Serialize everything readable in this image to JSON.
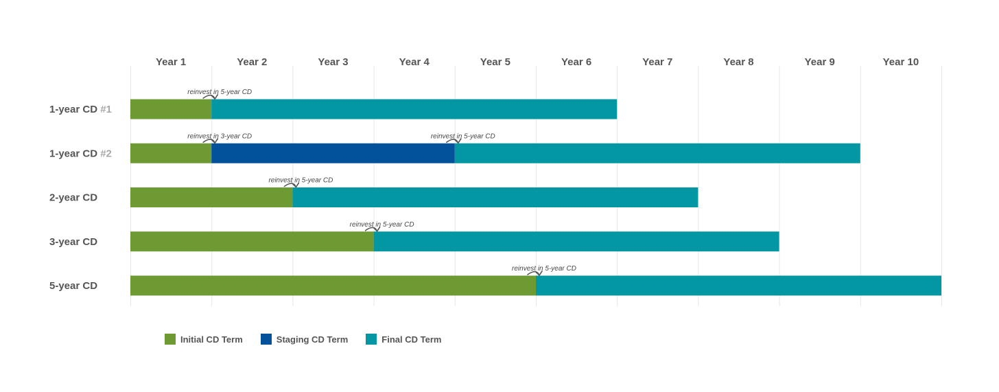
{
  "chart_data": {
    "type": "bar",
    "orientation": "horizontal-stacked-timeline",
    "x_categories": [
      "Year 1",
      "Year 2",
      "Year 3",
      "Year 4",
      "Year 5",
      "Year 6",
      "Year 7",
      "Year 8",
      "Year 9",
      "Year 10"
    ],
    "xlim": [
      0,
      10
    ],
    "grid": true,
    "legend_position": "bottom-left",
    "colors": {
      "initial": "#6e9a34",
      "staging": "#02529b",
      "final": "#0397a3"
    },
    "legend": [
      {
        "key": "initial",
        "label": "Initial CD Term"
      },
      {
        "key": "staging",
        "label": "Staging CD Term"
      },
      {
        "key": "final",
        "label": "Final CD Term"
      }
    ],
    "rows": [
      {
        "name": "1-year CD",
        "suffix": " #1",
        "segments": [
          {
            "type": "initial",
            "start": 0,
            "end": 1
          },
          {
            "type": "final",
            "start": 1,
            "end": 6
          }
        ],
        "annotations": [
          {
            "text": "reinvest in 5-year CD",
            "at": 1
          }
        ]
      },
      {
        "name": "1-year CD",
        "suffix": " #2",
        "segments": [
          {
            "type": "initial",
            "start": 0,
            "end": 1
          },
          {
            "type": "staging",
            "start": 1,
            "end": 4
          },
          {
            "type": "final",
            "start": 4,
            "end": 9
          }
        ],
        "annotations": [
          {
            "text": "reinvest in 3-year CD",
            "at": 1
          },
          {
            "text": "reinvest in 5-year CD",
            "at": 4
          }
        ]
      },
      {
        "name": "2-year CD",
        "suffix": "",
        "segments": [
          {
            "type": "initial",
            "start": 0,
            "end": 2
          },
          {
            "type": "final",
            "start": 2,
            "end": 7
          }
        ],
        "annotations": [
          {
            "text": "reinvest in 5-year CD",
            "at": 2
          }
        ]
      },
      {
        "name": "3-year CD",
        "suffix": "",
        "segments": [
          {
            "type": "initial",
            "start": 0,
            "end": 3
          },
          {
            "type": "final",
            "start": 3,
            "end": 8
          }
        ],
        "annotations": [
          {
            "text": "reinvest in 5-year CD",
            "at": 3
          }
        ]
      },
      {
        "name": "5-year CD",
        "suffix": "",
        "segments": [
          {
            "type": "initial",
            "start": 0,
            "end": 5
          },
          {
            "type": "final",
            "start": 5,
            "end": 10
          }
        ],
        "annotations": [
          {
            "text": "reinvest in 5-year CD",
            "at": 5
          }
        ]
      }
    ]
  }
}
